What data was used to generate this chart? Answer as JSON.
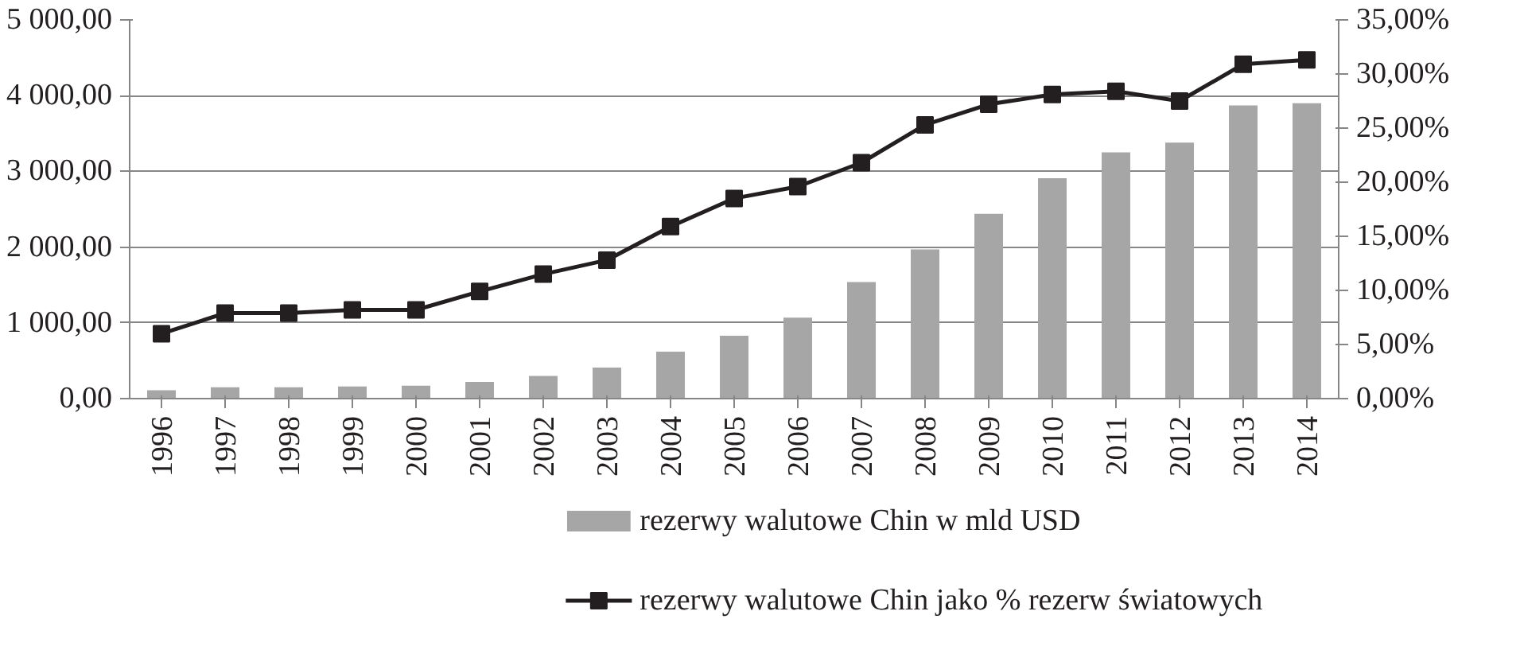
{
  "chart_data": {
    "type": "bar",
    "categories": [
      "1996",
      "1997",
      "1998",
      "1999",
      "2000",
      "2001",
      "2002",
      "2003",
      "2004",
      "2005",
      "2006",
      "2007",
      "2008",
      "2009",
      "2010",
      "2011",
      "2012",
      "2013",
      "2014"
    ],
    "series": [
      {
        "name": "rezerwy walutowe Chin w mld USD",
        "color": "#a6a6a6",
        "values": [
          110,
          150,
          150,
          160,
          170,
          220,
          300,
          410,
          620,
          830,
          1070,
          1540,
          1970,
          2440,
          2910,
          3250,
          3380,
          3870,
          3900
        ]
      },
      {
        "name": "rezerwy walutowe Chin jako % rezerw światowych",
        "type": "line",
        "axis": "y2",
        "color": "#231f20",
        "marker": "square",
        "values": [
          6.0,
          7.9,
          7.9,
          8.2,
          8.2,
          9.9,
          11.5,
          12.8,
          15.9,
          18.5,
          19.6,
          21.8,
          25.3,
          27.2,
          28.1,
          28.4,
          27.5,
          30.9,
          31.3
        ]
      }
    ],
    "ylim": [
      0,
      5000
    ],
    "yticks": [
      {
        "value": 0,
        "label": "0,00"
      },
      {
        "value": 1000,
        "label": "1 000,00"
      },
      {
        "value": 2000,
        "label": "2 000,00"
      },
      {
        "value": 3000,
        "label": "3 000,00"
      },
      {
        "value": 4000,
        "label": "4 000,00"
      },
      {
        "value": 5000,
        "label": "5 000,00"
      }
    ],
    "y2lim": [
      0,
      35
    ],
    "y2ticks": [
      {
        "value": 0,
        "label": "0,00%"
      },
      {
        "value": 5,
        "label": "5,00%"
      },
      {
        "value": 10,
        "label": "10,00%"
      },
      {
        "value": 15,
        "label": "15,00%"
      },
      {
        "value": 20,
        "label": "20,00%"
      },
      {
        "value": 25,
        "label": "25,00%"
      },
      {
        "value": 30,
        "label": "30,00%"
      },
      {
        "value": 35,
        "label": "35,00%"
      }
    ],
    "grid": "y",
    "legend": "bottom"
  }
}
